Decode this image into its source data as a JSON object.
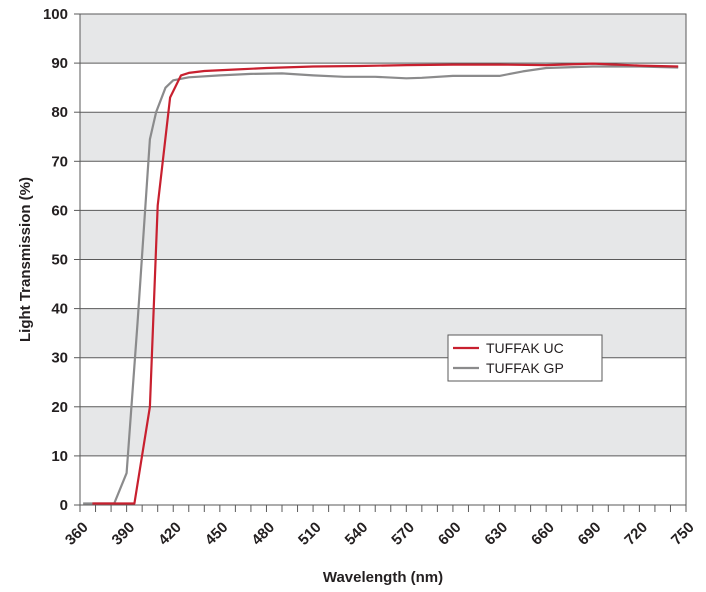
{
  "chart_data": {
    "type": "line",
    "xlabel": "Wavelength (nm)",
    "ylabel": "Light Transmission (%)",
    "xlim": [
      360,
      750
    ],
    "ylim": [
      0,
      100
    ],
    "x_ticks": [
      360,
      390,
      420,
      450,
      480,
      510,
      540,
      570,
      600,
      630,
      660,
      690,
      720,
      750
    ],
    "y_ticks": [
      0,
      10,
      20,
      30,
      40,
      50,
      60,
      70,
      80,
      90,
      100
    ],
    "grid": true,
    "alternating_bands": true,
    "legend_position": "center-right",
    "series": [
      {
        "name": "TUFFAK UC",
        "color": "#c8202f",
        "points": [
          [
            368,
            0.3
          ],
          [
            395,
            0.3
          ],
          [
            405,
            20
          ],
          [
            410,
            61
          ],
          [
            418,
            83
          ],
          [
            425,
            87.5
          ],
          [
            430,
            88
          ],
          [
            440,
            88.4
          ],
          [
            460,
            88.7
          ],
          [
            480,
            89
          ],
          [
            510,
            89.3
          ],
          [
            540,
            89.4
          ],
          [
            570,
            89.6
          ],
          [
            600,
            89.7
          ],
          [
            630,
            89.7
          ],
          [
            660,
            89.6
          ],
          [
            690,
            89.9
          ],
          [
            720,
            89.5
          ],
          [
            745,
            89.3
          ]
        ]
      },
      {
        "name": "TUFFAK GP",
        "color": "#8b8b8c",
        "points": [
          [
            362,
            0.3
          ],
          [
            382,
            0.3
          ],
          [
            390,
            6.5
          ],
          [
            397,
            37
          ],
          [
            405,
            74.5
          ],
          [
            409,
            80
          ],
          [
            415,
            85
          ],
          [
            420,
            86.5
          ],
          [
            430,
            87.1
          ],
          [
            450,
            87.5
          ],
          [
            470,
            87.8
          ],
          [
            490,
            87.9
          ],
          [
            510,
            87.5
          ],
          [
            530,
            87.2
          ],
          [
            550,
            87.2
          ],
          [
            570,
            86.9
          ],
          [
            580,
            87
          ],
          [
            600,
            87.4
          ],
          [
            630,
            87.4
          ],
          [
            645,
            88.3
          ],
          [
            660,
            89
          ],
          [
            690,
            89.3
          ],
          [
            720,
            89.3
          ],
          [
            745,
            89.1
          ]
        ]
      }
    ]
  }
}
